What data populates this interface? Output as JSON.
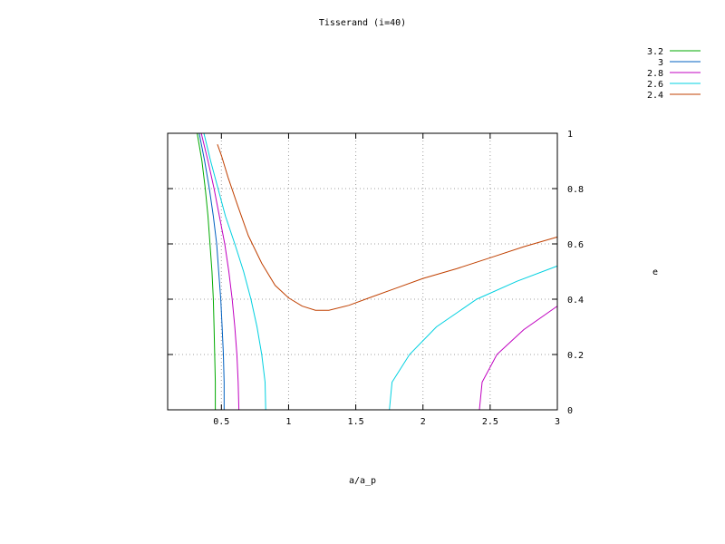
{
  "chart_data": {
    "type": "line",
    "title": "Tisserand (i=40)",
    "xlabel": "a/a_p",
    "ylabel": "e",
    "xlim": [
      0.1,
      3.0
    ],
    "ylim": [
      0,
      1
    ],
    "xticks": [
      {
        "v": 0.5,
        "label": "0.5"
      },
      {
        "v": 1.0,
        "label": "1"
      },
      {
        "v": 1.5,
        "label": "1.5"
      },
      {
        "v": 2.0,
        "label": "2"
      },
      {
        "v": 2.5,
        "label": "2.5"
      },
      {
        "v": 3.0,
        "label": "3"
      }
    ],
    "yticks": [
      {
        "v": 0,
        "label": "0"
      },
      {
        "v": 0.2,
        "label": "0.2"
      },
      {
        "v": 0.4,
        "label": "0.4"
      },
      {
        "v": 0.6,
        "label": "0.6"
      },
      {
        "v": 0.8,
        "label": "0.8"
      },
      {
        "v": 1.0,
        "label": "1"
      }
    ],
    "grid": true,
    "legend_position": "top-right",
    "series": [
      {
        "name": "3.2",
        "color": "#00aa00",
        "segments": [
          [
            [
              0.455,
              0.0
            ],
            [
              0.455,
              0.1
            ],
            [
              0.45,
              0.2
            ],
            [
              0.445,
              0.3
            ],
            [
              0.44,
              0.4
            ],
            [
              0.43,
              0.5
            ],
            [
              0.415,
              0.6
            ],
            [
              0.4,
              0.7
            ],
            [
              0.38,
              0.8
            ],
            [
              0.355,
              0.9
            ],
            [
              0.32,
              1.0
            ]
          ]
        ]
      },
      {
        "name": "3",
        "color": "#0060c0",
        "segments": [
          [
            [
              0.52,
              0.0
            ],
            [
              0.52,
              0.1
            ],
            [
              0.515,
              0.2
            ],
            [
              0.505,
              0.3
            ],
            [
              0.495,
              0.4
            ],
            [
              0.48,
              0.5
            ],
            [
              0.465,
              0.6
            ],
            [
              0.44,
              0.7
            ],
            [
              0.41,
              0.8
            ],
            [
              0.375,
              0.9
            ],
            [
              0.335,
              1.0
            ]
          ]
        ]
      },
      {
        "name": "2.8",
        "color": "#c000c0",
        "segments": [
          [
            [
              0.63,
              0.0
            ],
            [
              0.625,
              0.1
            ],
            [
              0.615,
              0.2
            ],
            [
              0.6,
              0.3
            ],
            [
              0.58,
              0.4
            ],
            [
              0.555,
              0.5
            ],
            [
              0.525,
              0.6
            ],
            [
              0.485,
              0.7
            ],
            [
              0.445,
              0.8
            ],
            [
              0.4,
              0.9
            ],
            [
              0.35,
              1.0
            ]
          ],
          [
            [
              2.42,
              0.0
            ],
            [
              2.44,
              0.1
            ],
            [
              2.55,
              0.2
            ],
            [
              2.75,
              0.29
            ],
            [
              3.0,
              0.375
            ]
          ]
        ]
      },
      {
        "name": "2.6",
        "color": "#00d0e0",
        "segments": [
          [
            [
              0.83,
              0.0
            ],
            [
              0.825,
              0.1
            ],
            [
              0.8,
              0.2
            ],
            [
              0.765,
              0.3
            ],
            [
              0.72,
              0.4
            ],
            [
              0.665,
              0.5
            ],
            [
              0.6,
              0.6
            ],
            [
              0.53,
              0.7
            ],
            [
              0.475,
              0.8
            ],
            [
              0.42,
              0.9
            ],
            [
              0.37,
              1.0
            ]
          ],
          [
            [
              1.75,
              0.0
            ],
            [
              1.77,
              0.1
            ],
            [
              1.9,
              0.2
            ],
            [
              2.1,
              0.3
            ],
            [
              2.4,
              0.4
            ],
            [
              2.7,
              0.465
            ],
            [
              3.0,
              0.52
            ]
          ]
        ]
      },
      {
        "name": "2.4",
        "color": "#c04000",
        "segments": [
          [
            [
              0.47,
              0.96
            ],
            [
              0.5,
              0.92
            ],
            [
              0.55,
              0.84
            ],
            [
              0.62,
              0.74
            ],
            [
              0.7,
              0.63
            ],
            [
              0.8,
              0.53
            ],
            [
              0.9,
              0.45
            ],
            [
              1.0,
              0.405
            ],
            [
              1.1,
              0.375
            ],
            [
              1.2,
              0.36
            ],
            [
              1.3,
              0.36
            ],
            [
              1.45,
              0.378
            ],
            [
              1.6,
              0.405
            ],
            [
              1.8,
              0.44
            ],
            [
              2.0,
              0.475
            ],
            [
              2.25,
              0.51
            ],
            [
              2.5,
              0.55
            ],
            [
              2.75,
              0.59
            ],
            [
              3.0,
              0.625
            ]
          ]
        ]
      }
    ]
  }
}
